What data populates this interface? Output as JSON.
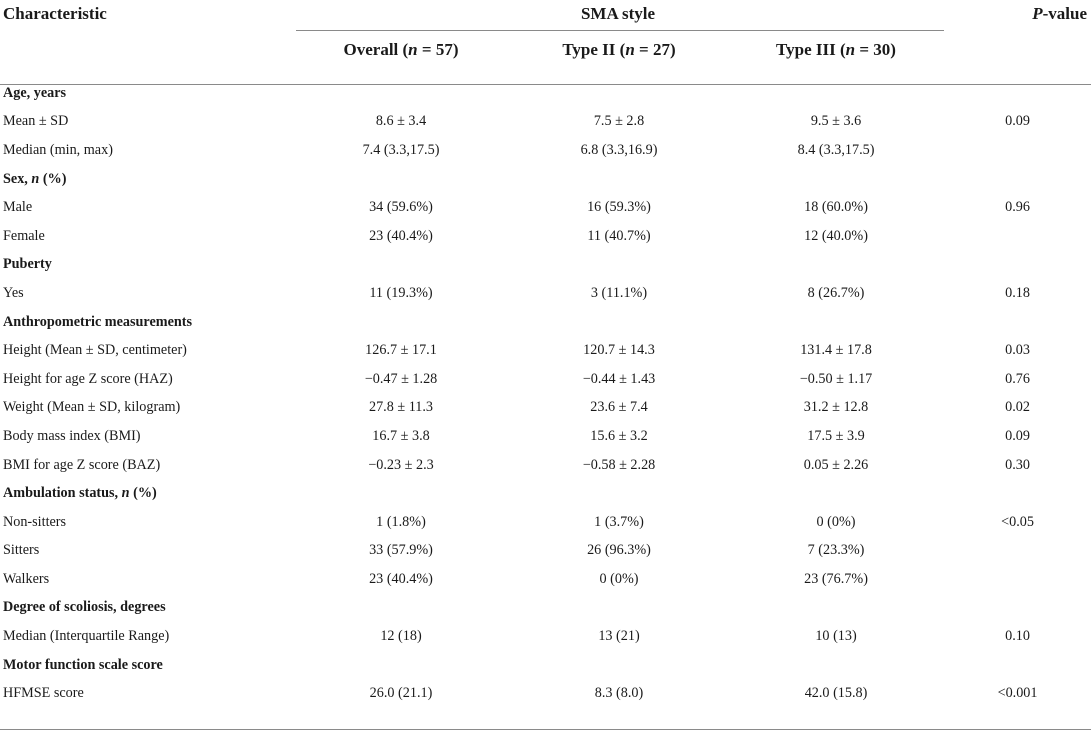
{
  "header": {
    "characteristic": "Characteristic",
    "group": "SMA style",
    "pvalue_p": "P",
    "pvalue_rest": "-value",
    "overall_label": "Overall (",
    "overall_n": "n",
    "overall_tail": " = 57)",
    "type2_label": "Type II (",
    "type2_n": "n",
    "type2_tail": " = 27)",
    "type3_label": "Type III (",
    "type3_n": "n",
    "type3_tail": " = 30)"
  },
  "sections": [
    {
      "title": "Age, years",
      "title_italic": "",
      "title_tail": "",
      "rows": [
        {
          "label": "Mean ± SD",
          "overall": "8.6 ± 3.4",
          "type2": "7.5 ± 2.8",
          "type3": "9.5 ± 3.6",
          "p": "0.09"
        },
        {
          "label": "Median (min, max)",
          "overall": "7.4 (3.3,17.5)",
          "type2": "6.8 (3.3,16.9)",
          "type3": "8.4 (3.3,17.5)",
          "p": ""
        }
      ]
    },
    {
      "title": "Sex, ",
      "title_italic": "n",
      "title_tail": " (%)",
      "rows": [
        {
          "label": "Male",
          "overall": "34 (59.6%)",
          "type2": "16 (59.3%)",
          "type3": "18 (60.0%)",
          "p": "0.96"
        },
        {
          "label": "Female",
          "overall": "23 (40.4%)",
          "type2": "11 (40.7%)",
          "type3": "12 (40.0%)",
          "p": ""
        }
      ]
    },
    {
      "title": "Puberty",
      "title_italic": "",
      "title_tail": "",
      "rows": [
        {
          "label": "Yes",
          "overall": "11 (19.3%)",
          "type2": "3 (11.1%)",
          "type3": "8 (26.7%)",
          "p": "0.18"
        }
      ]
    },
    {
      "title": "Anthropometric measurements",
      "title_italic": "",
      "title_tail": "",
      "rows": [
        {
          "label": "Height (Mean ± SD, centimeter)",
          "overall": "126.7 ± 17.1",
          "type2": "120.7 ± 14.3",
          "type3": "131.4 ± 17.8",
          "p": "0.03"
        },
        {
          "label": "Height for age Z score (HAZ)",
          "overall": "−0.47 ± 1.28",
          "type2": "−0.44 ± 1.43",
          "type3": "−0.50 ± 1.17",
          "p": "0.76"
        },
        {
          "label": "Weight (Mean ± SD, kilogram)",
          "overall": "27.8 ± 11.3",
          "type2": "23.6 ± 7.4",
          "type3": "31.2 ± 12.8",
          "p": "0.02"
        },
        {
          "label": "Body mass index (BMI)",
          "overall": "16.7 ± 3.8",
          "type2": "15.6 ± 3.2",
          "type3": "17.5 ± 3.9",
          "p": "0.09"
        },
        {
          "label": "BMI for age Z score (BAZ)",
          "overall": "−0.23 ± 2.3",
          "type2": "−0.58 ± 2.28",
          "type3": "0.05 ± 2.26",
          "p": "0.30"
        }
      ]
    },
    {
      "title": "Ambulation status, ",
      "title_italic": "n",
      "title_tail": " (%)",
      "rows": [
        {
          "label": "Non-sitters",
          "overall": "1 (1.8%)",
          "type2": "1 (3.7%)",
          "type3": "0 (0%)",
          "p": "<0.05"
        },
        {
          "label": "Sitters",
          "overall": "33 (57.9%)",
          "type2": "26 (96.3%)",
          "type3": "7 (23.3%)",
          "p": ""
        },
        {
          "label": "Walkers",
          "overall": "23 (40.4%)",
          "type2": "0 (0%)",
          "type3": "23 (76.7%)",
          "p": ""
        }
      ]
    },
    {
      "title": " Degree of scoliosis, degrees",
      "title_italic": "",
      "title_tail": "",
      "rows": [
        {
          "label": "Median (Interquartile Range)",
          "overall": "12 (18)",
          "type2": "13 (21)",
          "type3": "10 (13)",
          "p": "0.10"
        }
      ]
    },
    {
      "title": "Motor function scale score",
      "title_italic": "",
      "title_tail": "",
      "rows": [
        {
          "label": "HFMSE score",
          "overall": "26.0 (21.1)",
          "type2": "8.3 (8.0)",
          "type3": "42.0 (15.8)",
          "p": "<0.001"
        }
      ]
    }
  ]
}
